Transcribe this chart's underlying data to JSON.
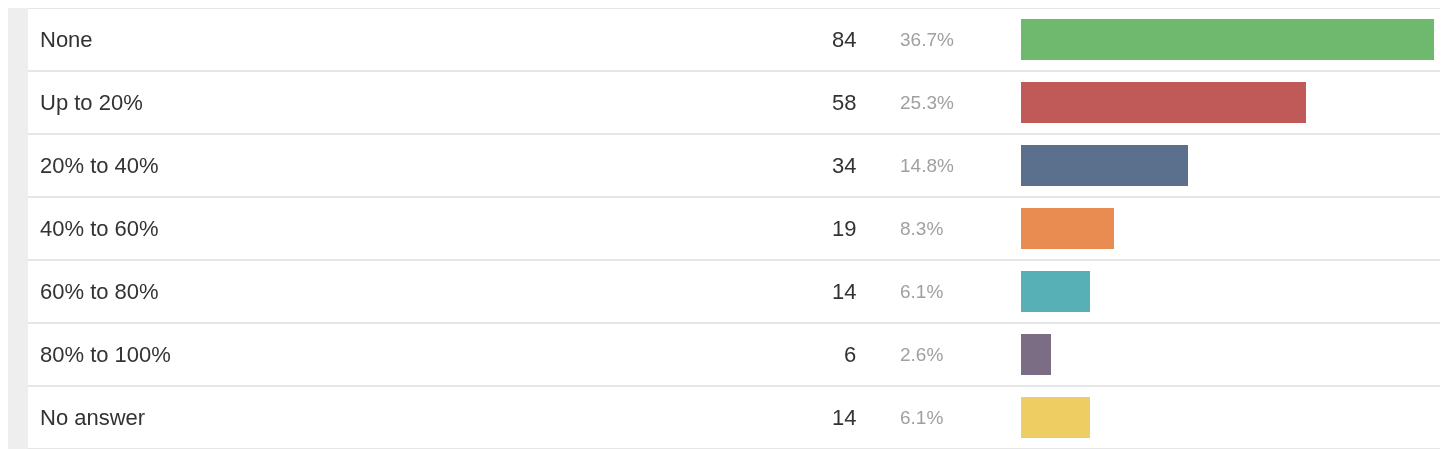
{
  "chart_data": {
    "type": "bar",
    "orientation": "horizontal",
    "categories": [
      "None",
      "Up to 20%",
      "20% to 40%",
      "40% to 60%",
      "60% to 80%",
      "80% to 100%",
      "No answer"
    ],
    "values": [
      84,
      58,
      34,
      19,
      14,
      6,
      14
    ],
    "colors": [
      "#6fb96f",
      "#c05a58",
      "#5b708c",
      "#e88c51",
      "#57b0b6",
      "#7b6d83",
      "#eecd62"
    ],
    "data_labels": true,
    "annotations": [
      "36.7%",
      "25.3%",
      "14.8%",
      "8.3%",
      "6.1%",
      "2.6%",
      "6.1%"
    ],
    "xlim": [
      0,
      84
    ]
  }
}
